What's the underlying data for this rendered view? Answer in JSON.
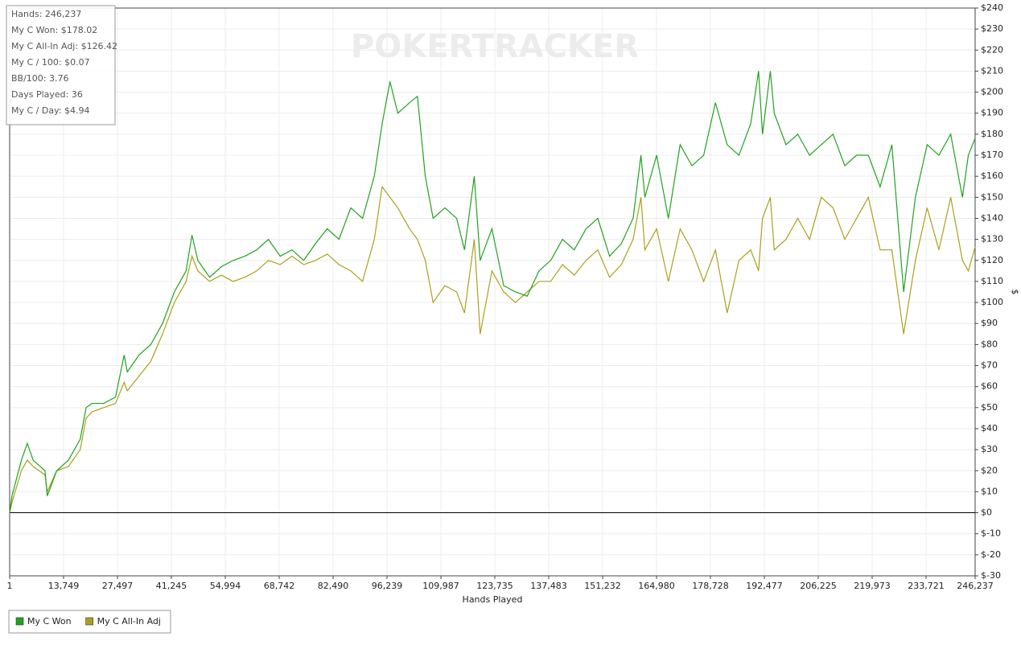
{
  "chart_data": {
    "type": "line",
    "watermark": "POKERTRACKER",
    "xlabel": "Hands Played",
    "ylabel": "$",
    "stats": [
      "Hands: 246,237",
      "My C Won: $178.02",
      "My C All-In Adj: $126.42",
      "My C / 100: $0.07",
      "BB/100: 3.76",
      "Days Played: 36",
      "My C / Day: $4.94"
    ],
    "x": [
      1,
      600,
      3000,
      4500,
      6000,
      9000,
      9600,
      12000,
      15000,
      18000,
      19500,
      21000,
      24000,
      27000,
      29200,
      30000,
      33000,
      36000,
      39000,
      42000,
      45000,
      46500,
      48000,
      51000,
      54000,
      57000,
      60000,
      63000,
      66000,
      69000,
      72000,
      75000,
      78000,
      81000,
      84000,
      87000,
      90000,
      93000,
      95000,
      97000,
      99000,
      102000,
      104000,
      106000,
      108000,
      111000,
      114000,
      116000,
      118500,
      120000,
      123000,
      126000,
      129000,
      132000,
      135000,
      138000,
      141000,
      144000,
      147000,
      150000,
      153000,
      156000,
      159000,
      161000,
      162000,
      165000,
      168000,
      171000,
      174000,
      177000,
      180000,
      183000,
      186000,
      189000,
      191000,
      192000,
      194000,
      195000,
      198000,
      201000,
      204000,
      207000,
      210000,
      213000,
      216000,
      219000,
      222000,
      225000,
      228000,
      231000,
      234000,
      237000,
      240000,
      243000,
      244500,
      246237
    ],
    "series": [
      {
        "name": "My C Won",
        "color": "#1fa31f",
        "values": [
          0,
          8,
          25,
          33,
          25,
          20,
          8,
          20,
          25,
          35,
          50,
          52,
          52,
          55,
          75,
          67,
          75,
          80,
          90,
          105,
          115,
          132,
          120,
          112,
          117,
          120,
          122,
          125,
          130,
          122,
          125,
          120,
          128,
          135,
          130,
          145,
          140,
          160,
          185,
          205,
          190,
          195,
          198,
          160,
          140,
          145,
          140,
          125,
          160,
          120,
          135,
          108,
          105,
          103,
          115,
          120,
          130,
          125,
          135,
          140,
          122,
          128,
          140,
          170,
          150,
          170,
          140,
          175,
          165,
          170,
          195,
          175,
          170,
          185,
          210,
          180,
          210,
          190,
          175,
          180,
          170,
          175,
          180,
          165,
          170,
          170,
          155,
          175,
          105,
          150,
          175,
          170,
          180,
          150,
          170,
          178.02
        ]
      },
      {
        "name": "My C All-In Adj",
        "color": "#a9a11b",
        "values": [
          0,
          5,
          20,
          25,
          22,
          18,
          10,
          20,
          22,
          30,
          45,
          48,
          50,
          52,
          62,
          58,
          65,
          72,
          85,
          100,
          110,
          122,
          115,
          110,
          113,
          110,
          112,
          115,
          120,
          118,
          122,
          118,
          120,
          123,
          118,
          115,
          110,
          130,
          155,
          150,
          145,
          135,
          130,
          120,
          100,
          108,
          105,
          95,
          130,
          85,
          115,
          105,
          100,
          105,
          110,
          110,
          118,
          113,
          120,
          125,
          112,
          118,
          130,
          150,
          125,
          135,
          110,
          135,
          125,
          110,
          125,
          95,
          120,
          125,
          115,
          140,
          150,
          125,
          130,
          140,
          130,
          150,
          145,
          130,
          140,
          150,
          125,
          125,
          85,
          120,
          145,
          125,
          150,
          120,
          115,
          126.42
        ]
      }
    ],
    "xlim": [
      1,
      246237
    ],
    "xticks": [
      1,
      {
        "value": 13749,
        "label": "13,749"
      },
      {
        "value": 27497,
        "label": "27,497"
      },
      {
        "value": 41245,
        "label": "41,245"
      },
      {
        "value": 54994,
        "label": "54,994"
      },
      {
        "value": 68742,
        "label": "68,742"
      },
      {
        "value": 82490,
        "label": "82,490"
      },
      {
        "value": 96239,
        "label": "96,239"
      },
      {
        "value": 109987,
        "label": "109,987"
      },
      {
        "value": 123735,
        "label": "123,735"
      },
      {
        "value": 137483,
        "label": "137,483"
      },
      {
        "value": 151232,
        "label": "151,232"
      },
      {
        "value": 164980,
        "label": "164,980"
      },
      {
        "value": 178728,
        "label": "178,728"
      },
      {
        "value": 192477,
        "label": "192,477"
      },
      {
        "value": 206225,
        "label": "206,225"
      },
      {
        "value": 219973,
        "label": "219,973"
      },
      {
        "value": 233721,
        "label": "233,721"
      },
      {
        "value": 246237,
        "label": "246,237"
      }
    ],
    "ylim": [
      -30,
      240
    ],
    "yticks": [
      {
        "value": 240,
        "label": "$240"
      },
      {
        "value": 230,
        "label": "$230"
      },
      {
        "value": 220,
        "label": "$220"
      },
      {
        "value": 210,
        "label": "$210"
      },
      {
        "value": 200,
        "label": "$200"
      },
      {
        "value": 190,
        "label": "$190"
      },
      {
        "value": 180,
        "label": "$180"
      },
      {
        "value": 170,
        "label": "$170"
      },
      {
        "value": 160,
        "label": "$160"
      },
      {
        "value": 150,
        "label": "$150"
      },
      {
        "value": 140,
        "label": "$140"
      },
      {
        "value": 130,
        "label": "$130"
      },
      {
        "value": 120,
        "label": "$120"
      },
      {
        "value": 110,
        "label": "$110"
      },
      {
        "value": 100,
        "label": "$100"
      },
      {
        "value": 90,
        "label": "$90"
      },
      {
        "value": 80,
        "label": "$80"
      },
      {
        "value": 70,
        "label": "$70"
      },
      {
        "value": 60,
        "label": "$60"
      },
      {
        "value": 50,
        "label": "$50"
      },
      {
        "value": 40,
        "label": "$40"
      },
      {
        "value": 30,
        "label": "$30"
      },
      {
        "value": 20,
        "label": "$20"
      },
      {
        "value": 10,
        "label": "$10"
      },
      {
        "value": 0,
        "label": "$0"
      },
      {
        "value": -10,
        "label": "$-10"
      },
      {
        "value": -20,
        "label": "$-20"
      },
      {
        "value": -30,
        "label": "$-30"
      }
    ],
    "grid": true,
    "legend": "bottom-left"
  }
}
